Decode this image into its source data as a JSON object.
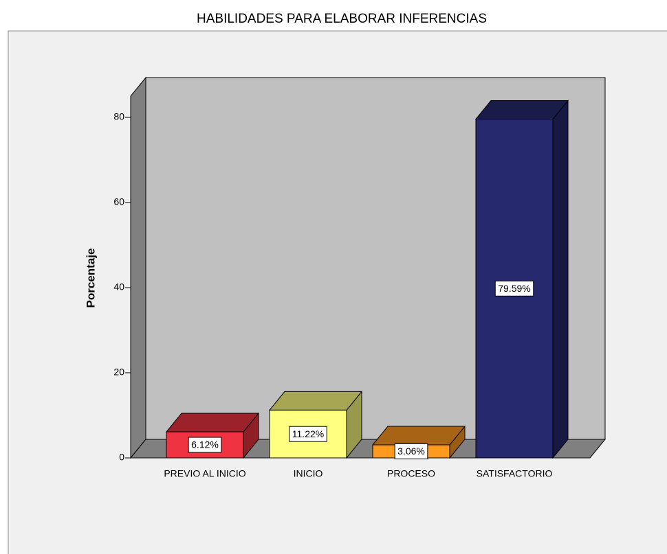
{
  "chart_data": {
    "type": "bar3d",
    "title": "HABILIDADES PARA ELABORAR INFERENCIAS",
    "y_label": "Porcentaje",
    "categories": [
      "PREVIO AL INICIO",
      "INICIO",
      "PROCESO",
      "SATISFACTORIO"
    ],
    "values": [
      6.12,
      11.22,
      3.06,
      79.59
    ],
    "value_labels": [
      "6.12%",
      "11.22%",
      "3.06%",
      "79.59%"
    ],
    "colors": [
      "#ef3340",
      "#ffff80",
      "#ff9a1f",
      "#26296e"
    ],
    "ylim": [
      0,
      85
    ],
    "yticks": [
      0,
      20,
      40,
      60,
      80
    ],
    "grid": false
  }
}
